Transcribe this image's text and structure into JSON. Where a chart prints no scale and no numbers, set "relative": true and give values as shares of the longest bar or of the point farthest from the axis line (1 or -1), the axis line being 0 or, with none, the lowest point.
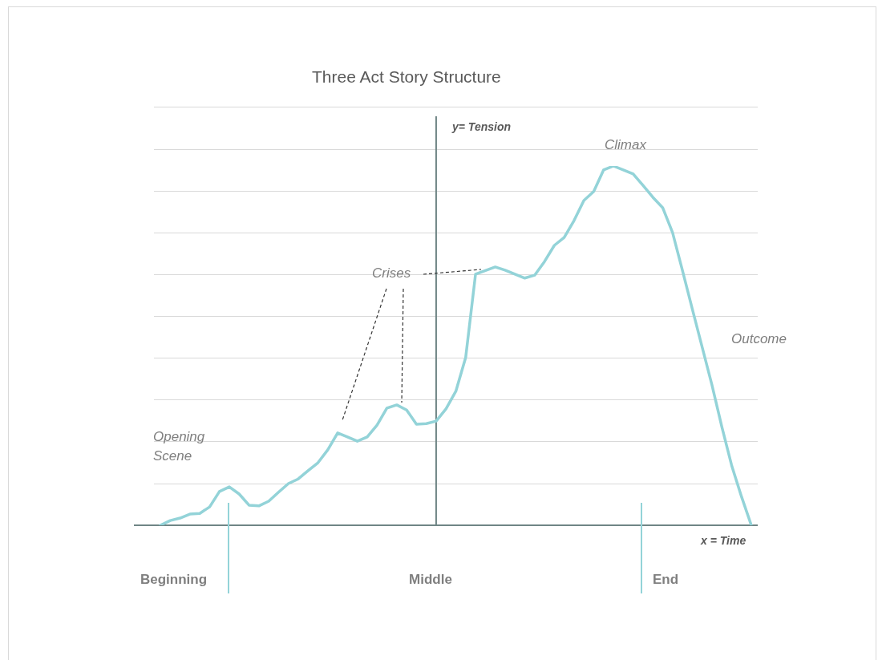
{
  "chart_data": {
    "type": "line",
    "title": "Three Act Story Structure",
    "xlabel": "x = Time",
    "ylabel": "y= Tension",
    "relative": true,
    "legend": false,
    "marker": "none",
    "line_style": "solid",
    "categories": [
      null,
      null,
      null,
      null,
      null,
      null,
      null,
      null,
      null,
      null,
      null,
      null,
      null,
      null,
      null,
      null,
      null,
      null,
      null,
      null,
      null,
      null,
      null,
      null,
      null,
      null,
      null,
      null,
      null,
      null,
      null,
      null,
      null,
      null,
      null,
      null,
      null,
      null,
      null,
      null,
      null,
      null,
      null,
      null,
      null,
      null,
      null,
      null,
      null,
      null,
      null,
      null,
      null,
      null,
      null,
      null,
      null,
      null,
      null,
      null,
      null
    ],
    "series": [
      {
        "color": "#93d3d8",
        "values": [
          0,
          0.013,
          0.02,
          0.031,
          0.033,
          0.051,
          0.094,
          0.107,
          0.087,
          0.056,
          0.054,
          0.067,
          0.092,
          0.116,
          0.129,
          0.152,
          0.174,
          0.21,
          0.257,
          0.246,
          0.234,
          0.246,
          0.279,
          0.326,
          0.335,
          0.321,
          0.281,
          0.283,
          0.29,
          0.324,
          0.373,
          0.467,
          0.699,
          0.709,
          0.719,
          0.71,
          0.699,
          0.688,
          0.696,
          0.734,
          0.779,
          0.801,
          0.848,
          0.904,
          0.929,
          0.989,
          1,
          0.989,
          0.978,
          0.946,
          0.913,
          0.884,
          0.815,
          0.71,
          0.603,
          0.497,
          0.391,
          0.275,
          0.167,
          0.08,
          0
        ]
      }
    ],
    "annotations": [
      "Opening Scene",
      "Crises",
      "Climax",
      "Outcome",
      "Beginning",
      "Middle",
      "End"
    ]
  }
}
